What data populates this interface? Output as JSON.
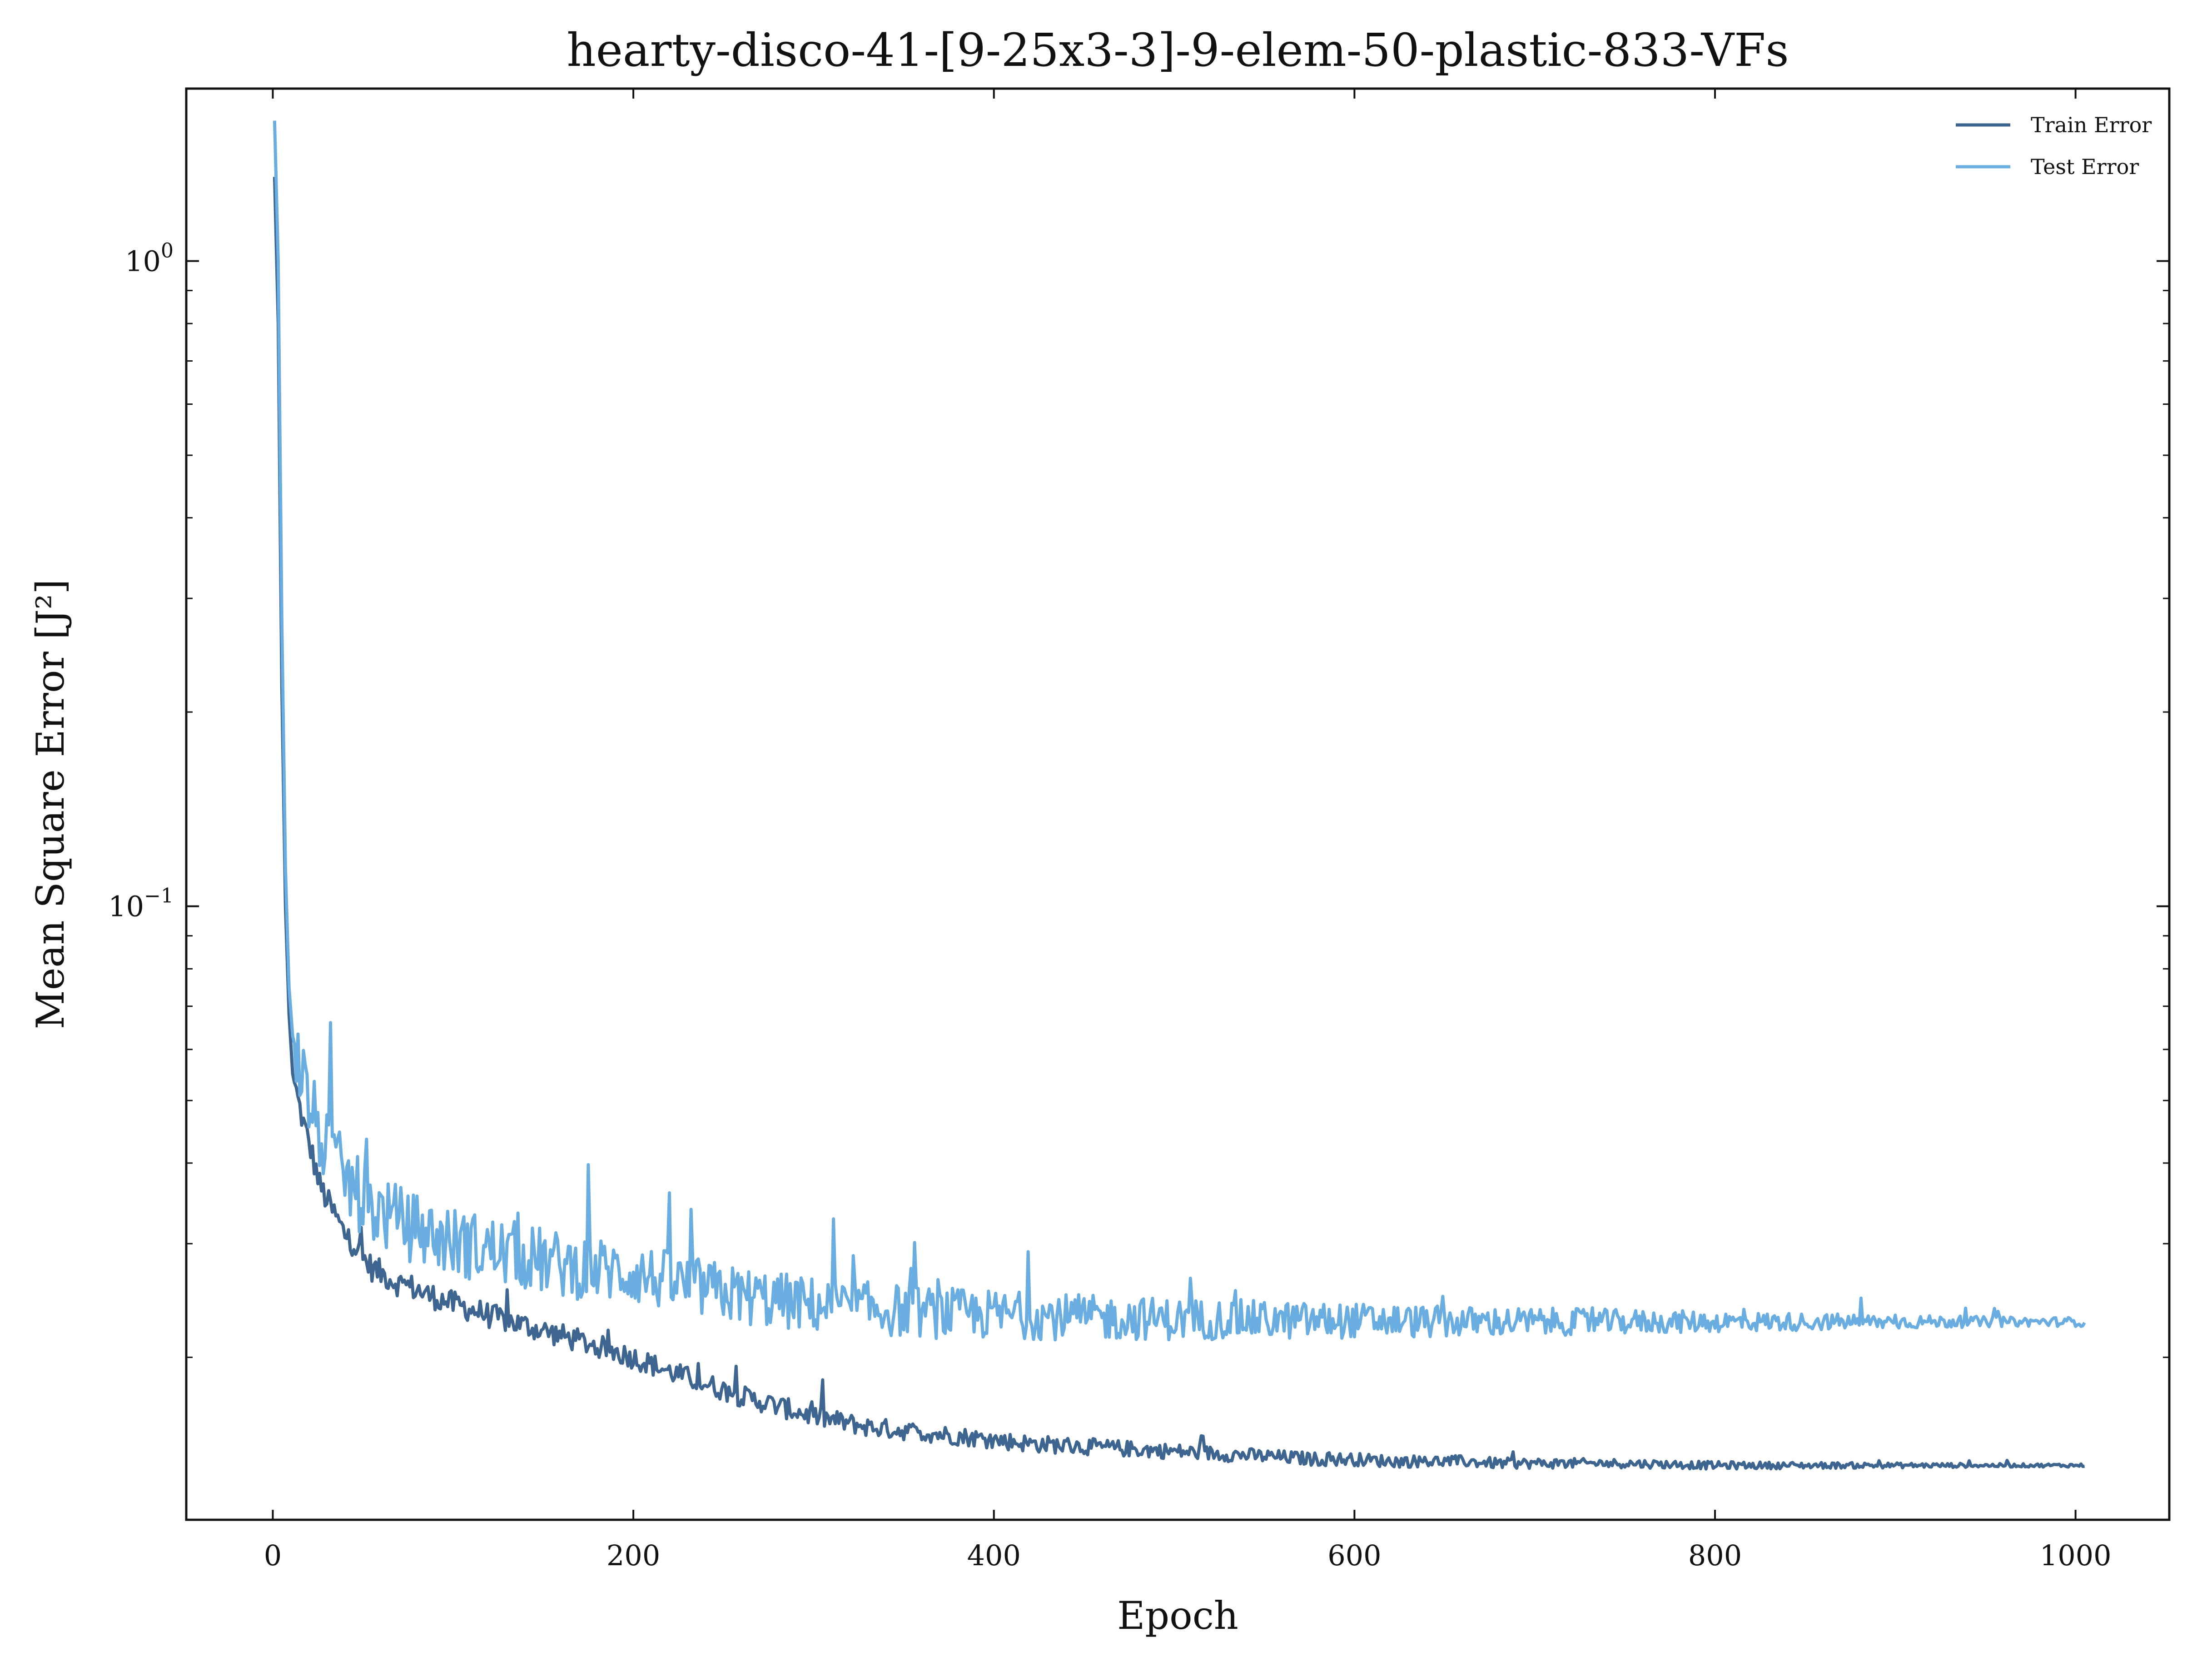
{
  "chart_data": {
    "type": "line",
    "title": "hearty-disco-41-[9-25x3-3]-9-elem-50-plastic-833-VFs",
    "xlabel": "Epoch",
    "ylabel": "Mean Square Error [J²]",
    "xlim": [
      -48,
      1052
    ],
    "ylim": [
      0.0112,
      1.85
    ],
    "yscale": "log",
    "grid": false,
    "legend_position": "top-right",
    "x_ticks": [
      {
        "value": 0,
        "label": "0"
      },
      {
        "value": 200,
        "label": "200"
      },
      {
        "value": 400,
        "label": "400"
      },
      {
        "value": 600,
        "label": "600"
      },
      {
        "value": 800,
        "label": "800"
      },
      {
        "value": 1000,
        "label": "1000"
      }
    ],
    "y_ticks": [
      {
        "value": 1,
        "base": "10",
        "exp": "0"
      },
      {
        "value": 0.1,
        "base": "10",
        "exp": "−1"
      }
    ],
    "series": [
      {
        "name": "Train Error",
        "color": "#3d6590",
        "x": [
          1,
          3,
          5,
          7,
          9,
          11,
          14,
          17,
          20,
          23,
          26,
          30,
          35,
          40,
          45,
          50,
          55,
          60,
          65,
          70,
          75,
          80,
          85,
          90,
          95,
          100,
          105,
          110,
          115,
          120,
          125,
          130,
          135,
          140,
          145,
          150,
          155,
          160,
          165,
          170,
          175,
          180,
          185,
          190,
          195,
          200,
          210,
          220,
          230,
          240,
          250,
          260,
          270,
          280,
          290,
          300,
          310,
          320,
          330,
          340,
          350,
          360,
          370,
          380,
          390,
          400,
          420,
          440,
          460,
          480,
          500,
          520,
          540,
          560,
          580,
          600,
          620,
          640,
          660,
          680,
          700,
          750,
          800,
          850,
          900,
          950,
          1005
        ],
        "y": [
          1.35,
          0.8,
          0.22,
          0.1,
          0.068,
          0.055,
          0.05,
          0.046,
          0.043,
          0.04,
          0.037,
          0.035,
          0.033,
          0.031,
          0.03,
          0.0285,
          0.0275,
          0.027,
          0.0265,
          0.026,
          0.0258,
          0.0255,
          0.025,
          0.0248,
          0.0245,
          0.0242,
          0.024,
          0.0237,
          0.0235,
          0.0232,
          0.023,
          0.0228,
          0.0226,
          0.0224,
          0.0222,
          0.022,
          0.0218,
          0.0216,
          0.0214,
          0.0212,
          0.021,
          0.0208,
          0.0206,
          0.0204,
          0.0202,
          0.02,
          0.0195,
          0.019,
          0.0186,
          0.0182,
          0.0178,
          0.0174,
          0.0171,
          0.0168,
          0.0165,
          0.0162,
          0.016,
          0.0158,
          0.0156,
          0.0155,
          0.0154,
          0.0153,
          0.0152,
          0.0151,
          0.015,
          0.0149,
          0.0147,
          0.0146,
          0.0145,
          0.0144,
          0.0143,
          0.0142,
          0.0141,
          0.014,
          0.0139,
          0.0139,
          0.0138,
          0.0138,
          0.0138,
          0.0137,
          0.0137,
          0.0137,
          0.0136,
          0.0136,
          0.0136,
          0.0136,
          0.0136
        ]
      },
      {
        "name": "Test Error",
        "color": "#6aade0",
        "x": [
          1,
          3,
          5,
          7,
          9,
          11,
          14,
          17,
          20,
          23,
          26,
          30,
          35,
          40,
          45,
          50,
          55,
          60,
          65,
          70,
          75,
          80,
          85,
          90,
          95,
          100,
          105,
          110,
          115,
          120,
          125,
          130,
          135,
          140,
          145,
          150,
          155,
          160,
          165,
          170,
          175,
          180,
          185,
          190,
          195,
          200,
          210,
          220,
          230,
          240,
          250,
          260,
          270,
          280,
          290,
          300,
          310,
          320,
          330,
          340,
          350,
          360,
          370,
          380,
          390,
          400,
          420,
          440,
          460,
          480,
          500,
          520,
          540,
          560,
          580,
          600,
          620,
          640,
          660,
          680,
          700,
          750,
          800,
          850,
          900,
          950,
          1005
        ],
        "y": [
          1.65,
          1.0,
          0.28,
          0.115,
          0.075,
          0.063,
          0.058,
          0.054,
          0.05,
          0.047,
          0.044,
          0.042,
          0.04,
          0.038,
          0.0365,
          0.035,
          0.034,
          0.0335,
          0.033,
          0.0325,
          0.032,
          0.0316,
          0.0312,
          0.0308,
          0.0305,
          0.0302,
          0.03,
          0.0298,
          0.0296,
          0.0294,
          0.0292,
          0.029,
          0.0288,
          0.0286,
          0.0284,
          0.0282,
          0.028,
          0.0278,
          0.0277,
          0.0276,
          0.0275,
          0.0274,
          0.0273,
          0.0272,
          0.0271,
          0.027,
          0.0266,
          0.0262,
          0.0258,
          0.0255,
          0.0252,
          0.0249,
          0.0247,
          0.0245,
          0.0243,
          0.0241,
          0.024,
          0.0239,
          0.0238,
          0.0237,
          0.0236,
          0.0235,
          0.0234,
          0.0234,
          0.0233,
          0.0233,
          0.0232,
          0.0231,
          0.023,
          0.023,
          0.0229,
          0.0229,
          0.0229,
          0.0228,
          0.0228,
          0.0228,
          0.0228,
          0.0227,
          0.0227,
          0.0227,
          0.0227,
          0.0227,
          0.0227,
          0.0227,
          0.0227,
          0.0227,
          0.0227
        ]
      }
    ]
  }
}
